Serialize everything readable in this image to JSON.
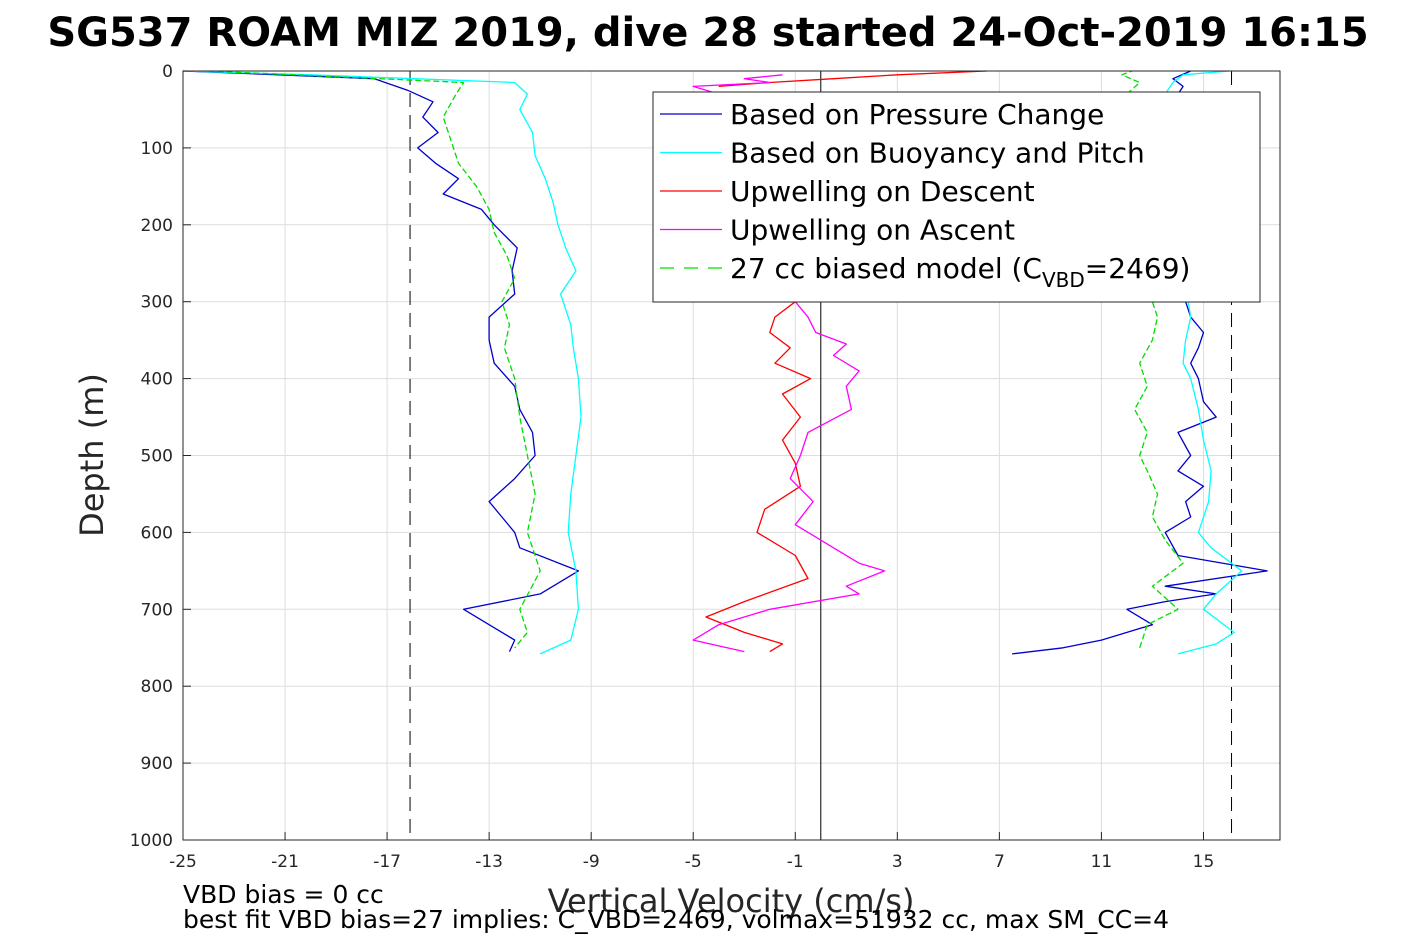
{
  "chart_data": {
    "type": "line",
    "title": "SG537 ROAM MIZ 2019, dive 28 started 24-Oct-2019 16:15",
    "xlabel": "Vertical Velocity (cm/s)",
    "ylabel": "Depth (m)",
    "xlim": [
      -25,
      18
    ],
    "ylim": [
      0,
      1000
    ],
    "y_reversed": true,
    "xticks": [
      -25,
      -21,
      -17,
      -13,
      -9,
      -5,
      -1,
      3,
      7,
      11,
      15
    ],
    "yticks": [
      0,
      100,
      200,
      300,
      400,
      500,
      600,
      700,
      800,
      900,
      1000
    ],
    "grid": true,
    "legend_position": "top-right",
    "reference_lines": [
      {
        "x": -16.1,
        "style": "dashed",
        "color": "#000000"
      },
      {
        "x": 16.1,
        "style": "dashed",
        "color": "#000000"
      },
      {
        "x": 0,
        "style": "solid",
        "color": "#000000"
      }
    ],
    "series": [
      {
        "name": "Based on Pressure Change",
        "color": "#0000cc",
        "style": "solid",
        "legend_label": "Based on Pressure Change",
        "segments": [
          {
            "depth": [
              0,
              10,
              25,
              40,
              60,
              80,
              100,
              120,
              140,
              160,
              180,
              200,
              230,
              260,
              290,
              320,
              350,
              380,
              410,
              440,
              470,
              500,
              530,
              560,
              580,
              600,
              620,
              650,
              680,
              700,
              720,
              740,
              755
            ],
            "value": [
              -25,
              -17.5,
              -16.2,
              -15.2,
              -15.6,
              -15.0,
              -15.8,
              -15.1,
              -14.2,
              -14.8,
              -13.3,
              -12.8,
              -11.9,
              -12.1,
              -12.0,
              -13.0,
              -13.0,
              -12.8,
              -12.0,
              -11.8,
              -11.3,
              -11.2,
              -12.0,
              -13.0,
              -12.5,
              -12.0,
              -11.8,
              -9.5,
              -11.0,
              -14.0,
              -13.0,
              -12.0,
              -12.2
            ]
          },
          {
            "depth": [
              758,
              750,
              740,
              730,
              720,
              700,
              690,
              680,
              670,
              650,
              630,
              600,
              580,
              560,
              540,
              520,
              500,
              470,
              450,
              430,
              400,
              380,
              360,
              340,
              320,
              300
            ],
            "value": [
              7.5,
              9.5,
              11.0,
              12.0,
              13.0,
              12.0,
              13.5,
              15.5,
              13.5,
              17.5,
              14.0,
              13.5,
              14.5,
              14.3,
              15.0,
              14.0,
              14.5,
              14.0,
              15.5,
              15.0,
              14.8,
              14.5,
              14.8,
              15.0,
              14.5,
              14.3
            ]
          },
          {
            "depth": [
              30,
              20,
              10,
              0
            ],
            "value": [
              14.0,
              14.2,
              13.8,
              14.5
            ]
          }
        ]
      },
      {
        "name": "Based on Buoyancy and Pitch",
        "color": "#00ffff",
        "style": "solid",
        "legend_label": "Based on Buoyancy and Pitch",
        "segments": [
          {
            "depth": [
              0,
              5,
              15,
              30,
              50,
              80,
              110,
              140,
              170,
              200,
              230,
              260,
              290,
              330,
              360,
              400,
              450,
              500,
              550,
              600,
              650,
              700,
              740,
              758
            ],
            "value": [
              -25,
              -20,
              -12.0,
              -11.5,
              -11.8,
              -11.3,
              -11.2,
              -10.8,
              -10.5,
              -10.3,
              -10.0,
              -9.6,
              -10.2,
              -9.8,
              -9.7,
              -9.5,
              -9.4,
              -9.6,
              -9.8,
              -9.9,
              -9.6,
              -9.5,
              -9.8,
              -11
            ]
          },
          {
            "depth": [
              758,
              745,
              730,
              700,
              680,
              650,
              620,
              600,
              560,
              520,
              480,
              440,
              400,
              380,
              350,
              320,
              300
            ],
            "value": [
              14,
              15.5,
              16.2,
              15.0,
              15.5,
              16.5,
              15.3,
              14.8,
              15.2,
              15.3,
              15.0,
              14.8,
              14.5,
              14.2,
              14.3,
              14.5,
              14.4
            ]
          },
          {
            "depth": [
              30,
              15,
              5,
              0
            ],
            "value": [
              13.5,
              13.8,
              14.2,
              16.0
            ]
          }
        ]
      },
      {
        "name": "Upwelling on Descent",
        "color": "#ff0000",
        "style": "solid",
        "legend_label": "Upwelling on Descent",
        "segments": [
          {
            "depth": [
              0,
              5,
              10,
              15,
              20
            ],
            "value": [
              6.5,
              3.0,
              0.5,
              -2.0,
              -4.0
            ]
          },
          {
            "depth": [
              300,
              320,
              340,
              360,
              380,
              400,
              420,
              450,
              480,
              510,
              540,
              570,
              600,
              630,
              660,
              690,
              710,
              730,
              745,
              755
            ],
            "value": [
              -1.0,
              -1.8,
              -2.0,
              -1.2,
              -1.8,
              -0.4,
              -1.5,
              -0.8,
              -1.5,
              -1.0,
              -0.8,
              -2.2,
              -2.5,
              -1.0,
              -0.5,
              -3.0,
              -4.5,
              -3.0,
              -1.5,
              -2.0
            ]
          }
        ]
      },
      {
        "name": "Upwelling on Ascent",
        "color": "#ff00ff",
        "style": "solid",
        "legend_label": "Upwelling on Ascent",
        "segments": [
          {
            "depth": [
              5,
              10,
              15,
              20,
              30
            ],
            "value": [
              -1.5,
              -3.0,
              -2.0,
              -5.0,
              -4.0
            ]
          },
          {
            "depth": [
              300,
              320,
              340,
              355,
              370,
              390,
              410,
              440,
              470,
              500,
              530,
              560,
              590,
              620,
              640,
              650,
              670,
              680,
              700,
              720,
              740,
              755
            ],
            "value": [
              -1.0,
              -0.5,
              -0.2,
              1.0,
              0.5,
              1.5,
              1.0,
              1.2,
              -0.5,
              -0.8,
              -1.2,
              -0.3,
              -1.0,
              0.5,
              1.5,
              2.5,
              1.0,
              1.5,
              -2.0,
              -4.0,
              -5.0,
              -3.0
            ]
          }
        ]
      },
      {
        "name": "27 cc biased model (C_VBD=2469)",
        "color": "#00dd00",
        "style": "dashed",
        "legend_label": "27 cc biased model (C",
        "legend_sub": "VBD",
        "legend_tail": "=2469)",
        "segments": [
          {
            "depth": [
              0,
              15,
              30,
              60,
              90,
              120,
              150,
              180,
              210,
              240,
              270,
              300,
              330,
              360,
              400,
              450,
              500,
              550,
              600,
              650,
              700,
              730,
              750
            ],
            "value": [
              -24,
              -14.0,
              -14.3,
              -14.8,
              -14.5,
              -14.2,
              -13.5,
              -13.0,
              -12.8,
              -12.3,
              -12.0,
              -12.5,
              -12.2,
              -12.4,
              -12.0,
              -11.8,
              -11.5,
              -11.2,
              -11.5,
              -11.0,
              -11.8,
              -11.5,
              -12.0
            ]
          },
          {
            "depth": [
              750,
              720,
              700,
              670,
              640,
              610,
              580,
              550,
              520,
              500,
              470,
              440,
              410,
              380,
              350,
              320,
              300
            ],
            "value": [
              12.5,
              12.8,
              14.0,
              13.0,
              14.2,
              13.5,
              13.0,
              13.2,
              12.8,
              12.5,
              12.8,
              12.3,
              12.8,
              12.5,
              13.0,
              13.2,
              13.0
            ]
          },
          {
            "depth": [
              30,
              15,
              5,
              0
            ],
            "value": [
              12.0,
              12.5,
              11.8,
              12.2
            ]
          }
        ]
      }
    ],
    "annotations": [
      "VBD bias = 0 cc",
      "best fit VBD bias=27 implies: C_VBD=2469, volmax=51932 cc, max SM_CC=4"
    ]
  }
}
